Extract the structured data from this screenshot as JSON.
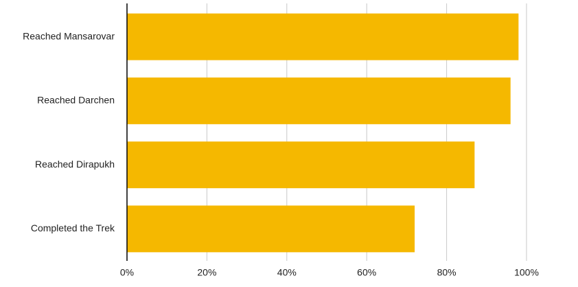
{
  "chart_data": {
    "type": "bar",
    "orientation": "horizontal",
    "categories": [
      "Reached Mansarovar",
      "Reached Darchen",
      "Reached Dirapukh",
      "Completed the Trek"
    ],
    "values": [
      98,
      96,
      87,
      72
    ],
    "color": "#f5b800",
    "xlim": [
      0,
      100
    ],
    "xticks": [
      {
        "value": 0,
        "label": "0%"
      },
      {
        "value": 20,
        "label": "20%"
      },
      {
        "value": 40,
        "label": "40%"
      },
      {
        "value": 60,
        "label": "60%"
      },
      {
        "value": 80,
        "label": "80%"
      },
      {
        "value": 100,
        "label": "100%"
      }
    ],
    "grid": true
  }
}
